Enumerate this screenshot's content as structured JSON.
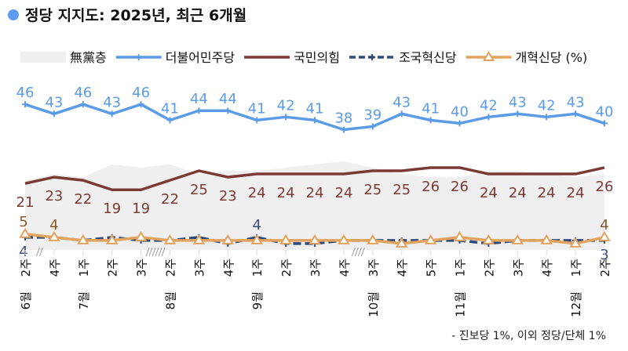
{
  "chart_data": {
    "type": "line",
    "title": "정당 지지도: 2025년, 최근 6개월",
    "footnote": "- 진보당 1%, 이외 정당/단체 1%",
    "title_dot_color": "#5B9BF0",
    "grid": false,
    "legend_placement": "top",
    "x_weeks": [
      "2주",
      "4주",
      "1주",
      "2주",
      "3주",
      "2주",
      "3주",
      "4주",
      "1주",
      "2주",
      "3주",
      "4주",
      "3주",
      "4주",
      "5주",
      "1주",
      "2주",
      "3주",
      "4주",
      "1주",
      "2주"
    ],
    "x_months": [
      "6월",
      "",
      "7월",
      "",
      "",
      "8월",
      "",
      "",
      "9월",
      "",
      "",
      "",
      "10월",
      "",
      "",
      "11월",
      "",
      "",
      "",
      "12월",
      ""
    ],
    "gap_marks_after": [
      0,
      4,
      11
    ],
    "ylim": [
      0,
      50
    ],
    "series": [
      {
        "name": "無黨층",
        "type": "area",
        "color": "#EFEFEF",
        "values": [
          22,
          24,
          23,
          27,
          26,
          27,
          24,
          25,
          25,
          26,
          27,
          28,
          26,
          24,
          23,
          23,
          25,
          25,
          24,
          23,
          24
        ],
        "labels": false
      },
      {
        "name": "더불어민주당",
        "color": "#5B9BE8",
        "marker": "plus",
        "dash": false,
        "label_color": "#5B9BE8",
        "label_pos": "above",
        "values": [
          46,
          43,
          46,
          43,
          46,
          41,
          44,
          44,
          41,
          42,
          41,
          38,
          39,
          43,
          41,
          40,
          42,
          43,
          42,
          43,
          40
        ]
      },
      {
        "name": "국민의힘",
        "color": "#7B3A36",
        "marker": "none",
        "dash": false,
        "label_color": "#7B3A36",
        "label_pos": "below",
        "values": [
          21,
          23,
          22,
          19,
          19,
          22,
          25,
          23,
          24,
          24,
          24,
          24,
          25,
          25,
          26,
          26,
          24,
          24,
          24,
          24,
          26
        ]
      },
      {
        "name": "조국혁신당",
        "color": "#2E4A7D",
        "marker": "plus",
        "dash": true,
        "label_color": "#3C4F80",
        "values": [
          4,
          4,
          3,
          4,
          3,
          3,
          4,
          2,
          4,
          2,
          2,
          3,
          3,
          3,
          3,
          3,
          2,
          3,
          3,
          3,
          3
        ],
        "shown_labels": [
          {
            "i": 0,
            "text": "4",
            "pos": "below"
          },
          {
            "i": 8,
            "text": "4",
            "pos": "above"
          },
          {
            "i": 20,
            "text": "3",
            "pos": "below"
          }
        ]
      },
      {
        "name": "개혁신당 (%)",
        "color": "#E2A35E",
        "marker": "triangle",
        "dash": false,
        "label_color": "#8B5A2B",
        "values": [
          5,
          4,
          3,
          3,
          4,
          3,
          3,
          3,
          3,
          3,
          3,
          3,
          3,
          2,
          3,
          4,
          3,
          3,
          3,
          2,
          4
        ],
        "shown_labels": [
          {
            "i": 0,
            "text": "5",
            "pos": "above"
          },
          {
            "i": 1,
            "text": "4",
            "pos": "above"
          },
          {
            "i": 20,
            "text": "4",
            "pos": "above"
          }
        ]
      }
    ]
  }
}
